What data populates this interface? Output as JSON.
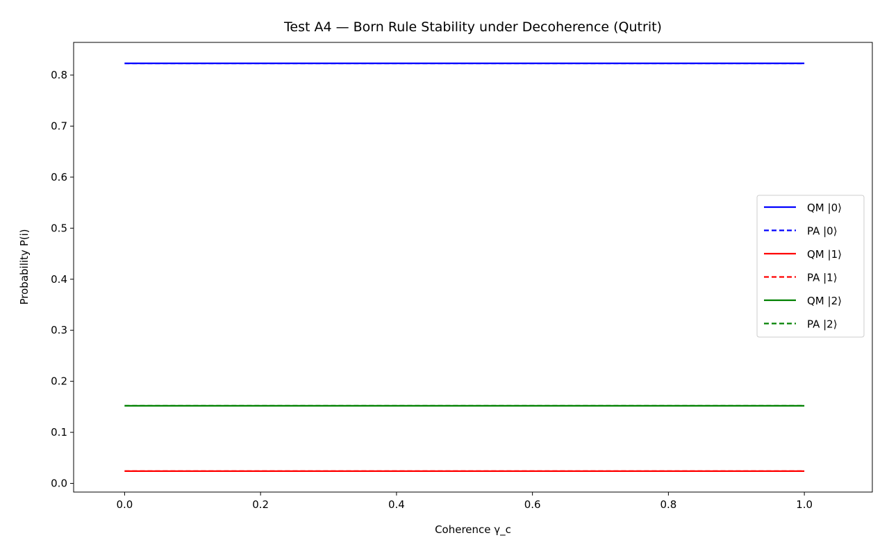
{
  "chart_data": {
    "type": "line",
    "title": "Test A4 — Born Rule Stability under Decoherence (Qutrit)",
    "xlabel": "Coherence γ_c",
    "ylabel": "Probability P(i)",
    "xlim": [
      -0.075,
      1.1
    ],
    "ylim": [
      -0.017,
      0.864
    ],
    "xticks": [
      0.0,
      0.2,
      0.4,
      0.6,
      0.8,
      1.0
    ],
    "xtick_labels": [
      "0.0",
      "0.2",
      "0.4",
      "0.6",
      "0.8",
      "1.0"
    ],
    "yticks": [
      0.0,
      0.1,
      0.2,
      0.3,
      0.4,
      0.5,
      0.6,
      0.7,
      0.8
    ],
    "ytick_labels": [
      "0.0",
      "0.1",
      "0.2",
      "0.3",
      "0.4",
      "0.5",
      "0.6",
      "0.7",
      "0.8"
    ],
    "grid": false,
    "legend_position": "center-right",
    "x": [
      0.0,
      1.0
    ],
    "series": [
      {
        "name": "QM |0⟩",
        "values": [
          0.823,
          0.823
        ],
        "color": "#0000ff",
        "style": "solid"
      },
      {
        "name": "PA |0⟩",
        "values": [
          0.823,
          0.823
        ],
        "color": "#0000ff",
        "style": "dashed"
      },
      {
        "name": "QM |1⟩",
        "values": [
          0.024,
          0.024
        ],
        "color": "#ff0000",
        "style": "solid"
      },
      {
        "name": "PA |1⟩",
        "values": [
          0.024,
          0.024
        ],
        "color": "#ff0000",
        "style": "dashed"
      },
      {
        "name": "QM |2⟩",
        "values": [
          0.152,
          0.152
        ],
        "color": "#008000",
        "style": "solid"
      },
      {
        "name": "PA |2⟩",
        "values": [
          0.152,
          0.152
        ],
        "color": "#008000",
        "style": "dashed"
      }
    ]
  }
}
